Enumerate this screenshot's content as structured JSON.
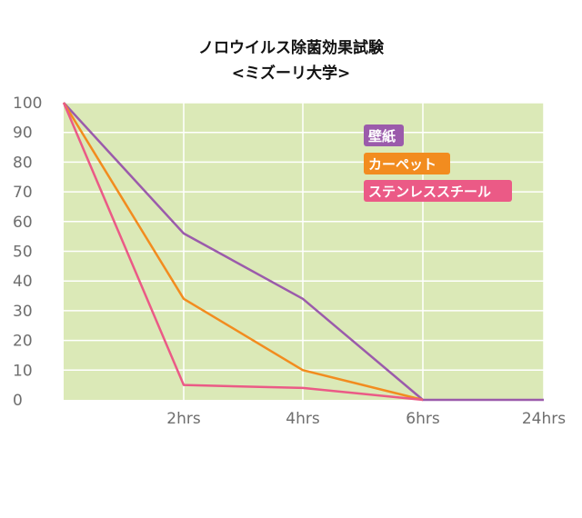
{
  "title_line1": "ノロウイルス除菌効果試験",
  "title_line2": "<ミズーリ大学>",
  "chart_data": {
    "type": "line",
    "x": [
      "0",
      "2hrs",
      "4hrs",
      "6hrs",
      "24hrs"
    ],
    "x_tick_labels": [
      "",
      "2hrs",
      "4hrs",
      "6hrs",
      "24hrs"
    ],
    "ylim": [
      0,
      100
    ],
    "y_ticks": [
      0,
      10,
      20,
      30,
      40,
      50,
      60,
      70,
      80,
      90,
      100
    ],
    "grid": true,
    "background_color": "#dbe9b7",
    "legend_position": "top-right",
    "series": [
      {
        "name": "壁紙",
        "color": "#9b5bab",
        "values": [
          100,
          56,
          34,
          0,
          0
        ]
      },
      {
        "name": "カーペット",
        "color": "#f28c1f",
        "values": [
          100,
          34,
          10,
          0,
          null
        ]
      },
      {
        "name": "ステンレススチール",
        "color": "#eb5a86",
        "values": [
          100,
          5,
          4,
          0,
          null
        ]
      }
    ]
  }
}
